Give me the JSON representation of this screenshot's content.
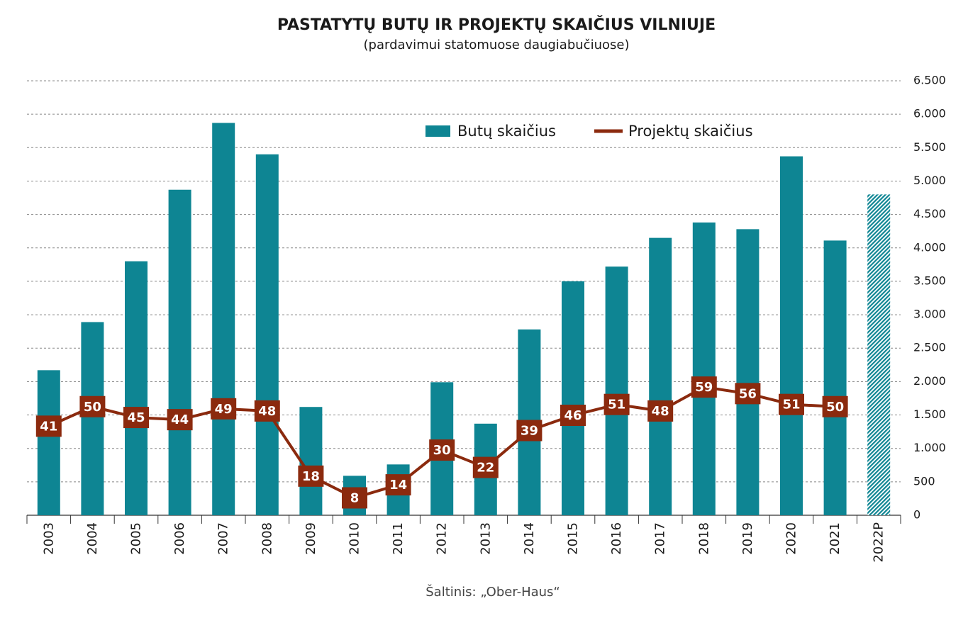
{
  "chart_data": {
    "type": "bar-line",
    "title": "PASTATYTŲ BUTŲ IR PROJEKTŲ SKAIČIUS VILNIUJE",
    "subtitle": "(pardavimui statomuose daugiabučiuose)",
    "source": "Šaltinis: „Ober-Haus“",
    "categories": [
      "2003",
      "2004",
      "2005",
      "2006",
      "2007",
      "2008",
      "2009",
      "2010",
      "2011",
      "2012",
      "2013",
      "2014",
      "2015",
      "2016",
      "2017",
      "2018",
      "2019",
      "2020",
      "2021",
      "2022P"
    ],
    "series": [
      {
        "name": "Butų skaičius",
        "type": "bar",
        "color": "#0e8593",
        "hatch": [
          19
        ],
        "values": [
          2170,
          2890,
          3800,
          4870,
          5870,
          5400,
          1620,
          590,
          760,
          1990,
          1370,
          2780,
          3500,
          3720,
          4150,
          4380,
          4280,
          5370,
          4110,
          4800
        ]
      },
      {
        "name": "Projektų skaičius",
        "type": "line",
        "color": "#8b2a0e",
        "axis": "y2",
        "values": [
          41,
          50,
          45,
          44,
          49,
          48,
          18,
          8,
          14,
          30,
          22,
          39,
          46,
          51,
          48,
          59,
          56,
          51,
          50,
          null
        ]
      }
    ],
    "ylim": [
      0,
      6500
    ],
    "yticks": [
      0,
      {
        "value": 500,
        "label": "500"
      },
      {
        "value": 1000,
        "label": "1.000"
      },
      {
        "value": 1500,
        "label": "1.500"
      },
      {
        "value": 2000,
        "label": "2.000"
      },
      {
        "value": 2500,
        "label": "2.500"
      },
      {
        "value": 3000,
        "label": "3.000"
      },
      {
        "value": 3500,
        "label": "3.500"
      },
      {
        "value": 4000,
        "label": "4.000"
      },
      {
        "value": 4500,
        "label": "4.500"
      },
      {
        "value": 5000,
        "label": "5.000"
      },
      {
        "value": 5500,
        "label": "5.500"
      },
      {
        "value": 6000,
        "label": "6.000"
      },
      {
        "value": 6500,
        "label": "6.500"
      }
    ],
    "y2lim": [
      0,
      200
    ],
    "grid": true
  }
}
